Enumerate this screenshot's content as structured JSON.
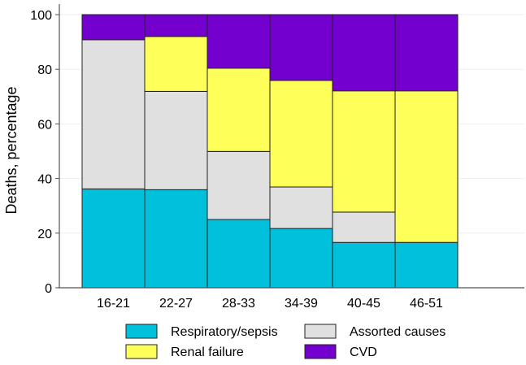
{
  "chart_data": {
    "type": "bar",
    "stacked": true,
    "title": "",
    "xlabel": "",
    "ylabel": "Deaths, percentage",
    "ylim": [
      0,
      100
    ],
    "yticks": [
      0,
      20,
      40,
      60,
      80,
      100
    ],
    "grid": true,
    "legend_position": "bottom",
    "categories": [
      "16-21",
      "22-27",
      "28-33",
      "34-39",
      "40-45",
      "46-51"
    ],
    "series": [
      {
        "name": "Respiratory/sepsis",
        "color": "#00c0dc",
        "values": [
          36.2,
          35.9,
          25.0,
          21.7,
          16.6,
          16.6
        ]
      },
      {
        "name": "Assorted causes",
        "color": "#e0e0e0",
        "values": [
          54.6,
          36.0,
          24.9,
          15.2,
          11.1,
          0
        ]
      },
      {
        "name": "Renal failure",
        "color": "#ffff5a",
        "values": [
          0,
          20.1,
          30.5,
          39.0,
          44.4,
          55.5
        ]
      },
      {
        "name": "CVD",
        "color": "#7400d0",
        "values": [
          9.2,
          8.0,
          19.6,
          24.1,
          27.9,
          27.9
        ]
      }
    ]
  }
}
